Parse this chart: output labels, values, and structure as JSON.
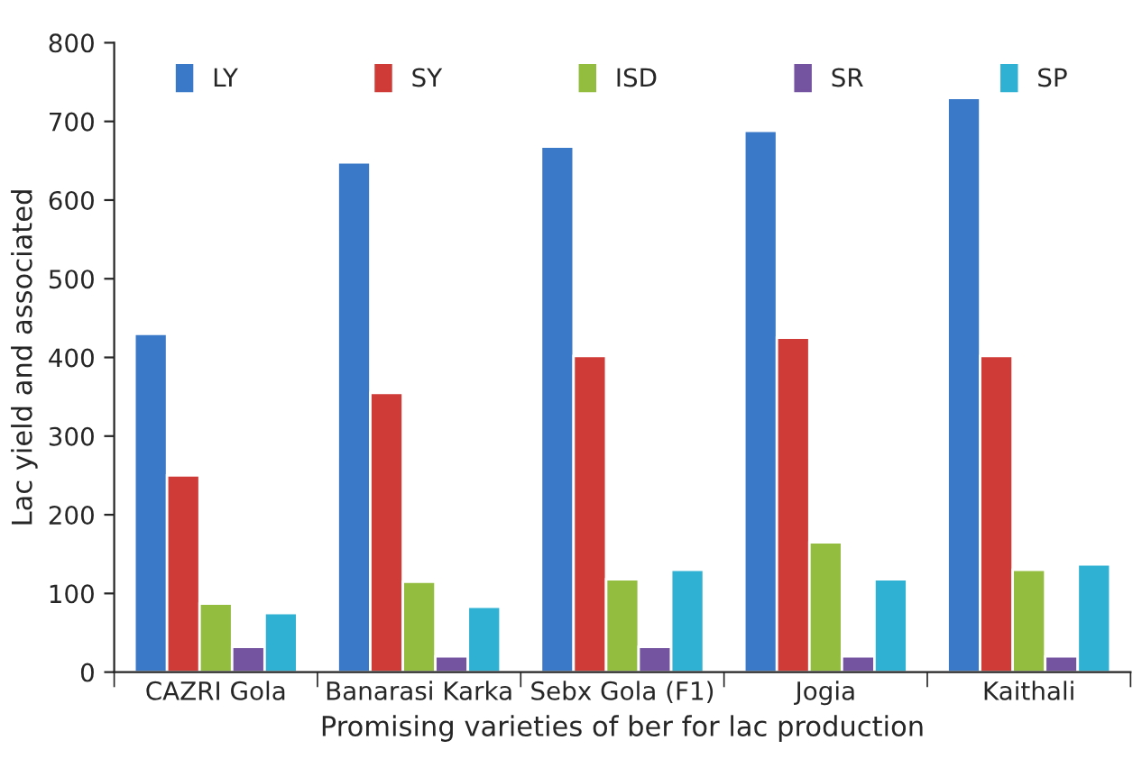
{
  "chart_data": {
    "type": "bar",
    "xlabel": "Promising varieties of ber for lac production",
    "ylabel": "Lac yield and associated",
    "categories": [
      "CAZRI Gola",
      "Banarasi Karka",
      "Sebx Gola (F1)",
      "Jogia",
      "Kaithali"
    ],
    "series": [
      {
        "name": "LY",
        "color": "#3a78c8",
        "values": [
          430,
          648,
          668,
          688,
          730
        ]
      },
      {
        "name": "SY",
        "color": "#cf3b37",
        "values": [
          250,
          355,
          402,
          425,
          402
        ]
      },
      {
        "name": "ISD",
        "color": "#93bd3e",
        "values": [
          87,
          115,
          118,
          165,
          130
        ]
      },
      {
        "name": "SR",
        "color": "#7453a0",
        "values": [
          32,
          20,
          32,
          20,
          20
        ]
      },
      {
        "name": "SP",
        "color": "#2fb1d3",
        "values": [
          75,
          83,
          130,
          118,
          137
        ]
      }
    ],
    "ylim": [
      0,
      800
    ],
    "yticks": [
      0,
      100,
      200,
      300,
      400,
      500,
      600,
      700,
      800
    ],
    "grid": false,
    "legend": "top"
  }
}
